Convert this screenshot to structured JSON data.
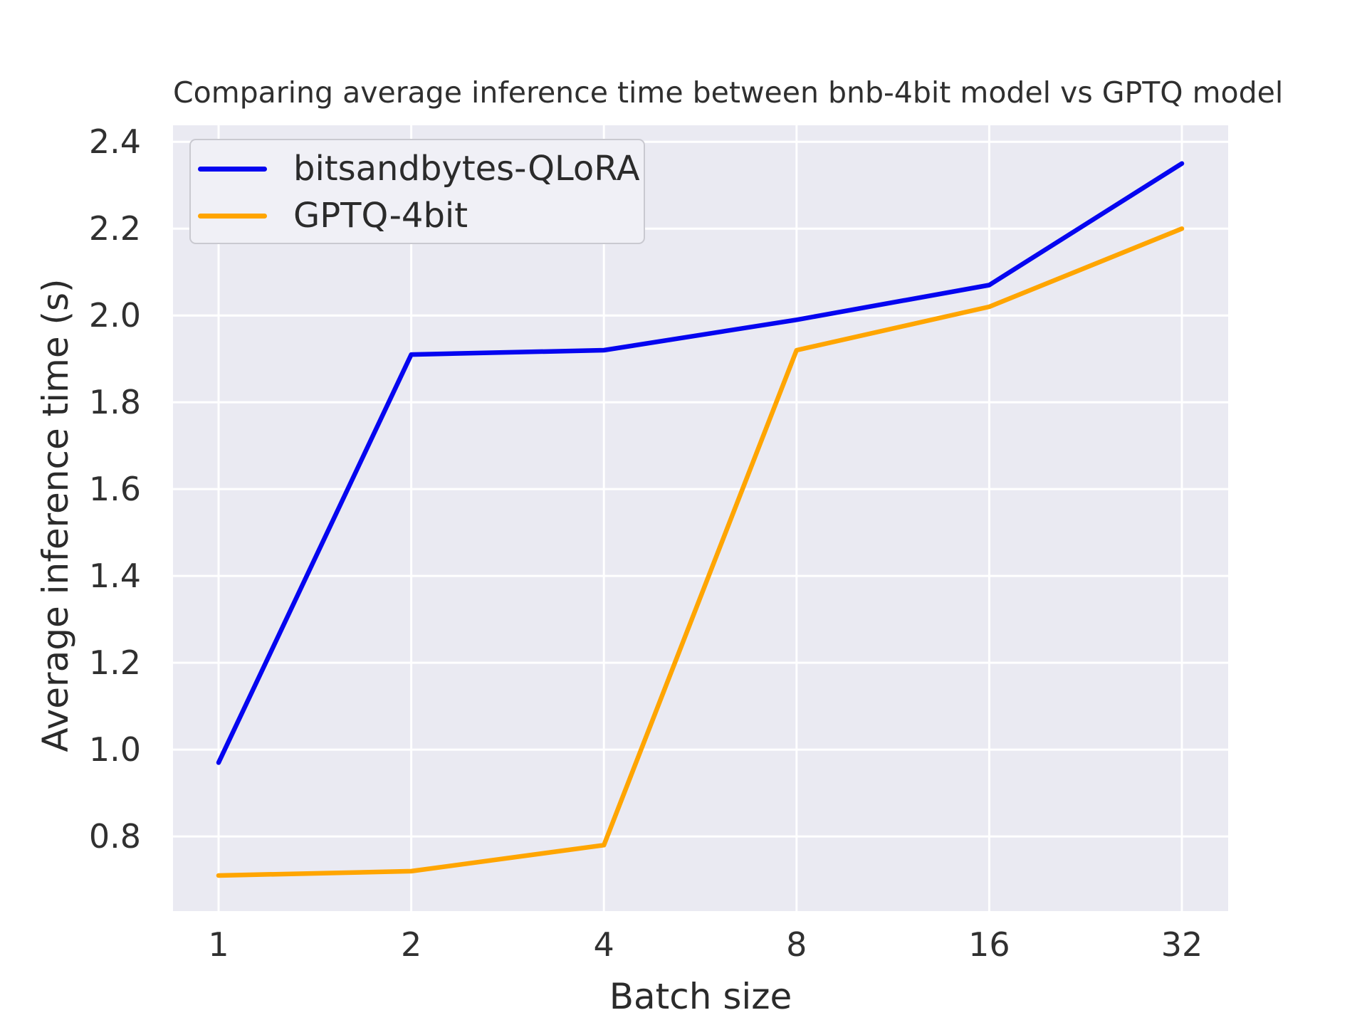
{
  "chart_data": {
    "type": "line",
    "title": "Comparing average inference time between bnb-4bit model vs GPTQ model",
    "xlabel": "Batch size",
    "ylabel": "Average inference time (s)",
    "categories": [
      "1",
      "2",
      "4",
      "8",
      "16",
      "32"
    ],
    "series": [
      {
        "name": "bitsandbytes-QLoRA",
        "color": "#0505f0",
        "values": [
          0.97,
          1.91,
          1.92,
          1.99,
          2.07,
          2.35
        ]
      },
      {
        "name": "GPTQ-4bit",
        "color": "#ffa500",
        "values": [
          0.71,
          0.72,
          0.78,
          1.92,
          2.02,
          2.2
        ]
      }
    ],
    "yticks": [
      0.8,
      1.0,
      1.2,
      1.4,
      1.6,
      1.8,
      2.0,
      2.2,
      2.4
    ],
    "ylim": [
      0.628,
      2.438
    ],
    "x_scale": "log2-equal-spacing",
    "grid": true,
    "legend_position": "upper left",
    "colors": {
      "figure_background": "#ffffff",
      "axes_background": "#eaeaf2",
      "grid": "#ffffff",
      "text": "#2b2b2b",
      "legend_background": "#f0f0f6",
      "legend_border": "#c9c9d0"
    }
  }
}
